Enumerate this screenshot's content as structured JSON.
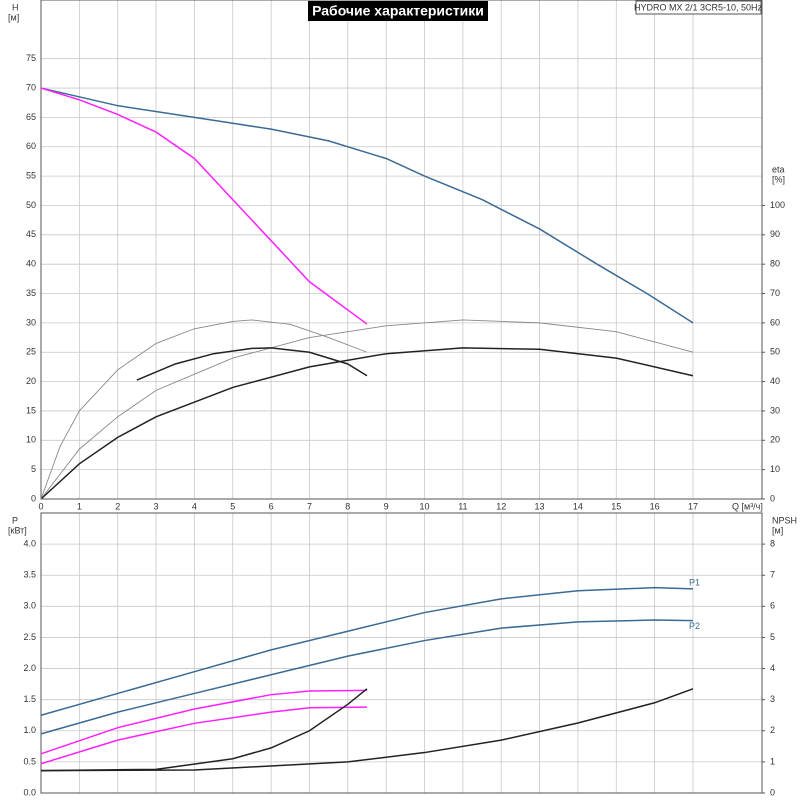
{
  "chart_data": [
    {
      "type": "line",
      "title": "Рабочие характеристики",
      "subtitle": "HYDRO MX 2/1 3CR5-10, 50Hz",
      "ylabel": "H",
      "yunit": "[м]",
      "y2label": "eta",
      "y2unit": "[%]",
      "xlabel": "Q [м³/ч]",
      "xlim": [
        0,
        18.8
      ],
      "xticks": [
        0,
        1,
        2,
        3,
        4,
        5,
        6,
        7,
        8,
        9,
        10,
        11,
        12,
        13,
        14,
        15,
        16,
        17
      ],
      "ylim": [
        0,
        85
      ],
      "yticks": [
        0,
        5,
        10,
        15,
        20,
        25,
        30,
        35,
        40,
        45,
        50,
        55,
        60,
        65,
        70,
        75
      ],
      "y2lim": [
        0,
        170
      ],
      "y2ticks": [
        0,
        10,
        20,
        30,
        40,
        50,
        60,
        70,
        80,
        90,
        100
      ],
      "grid": true,
      "series": [
        {
          "color": "#3b6a94",
          "x": [
            0,
            2,
            4,
            5,
            6,
            7.5,
            9,
            10,
            11.5,
            13,
            14.5,
            15.8,
            17
          ],
          "values": [
            70,
            67,
            65,
            64,
            63,
            61,
            58,
            55,
            51,
            46,
            40,
            35,
            30
          ]
        },
        {
          "color": "#ff20ff",
          "x": [
            0,
            1,
            2,
            3,
            4,
            5,
            6,
            7,
            8.5
          ],
          "values": [
            70,
            68,
            65.5,
            62.5,
            58,
            51,
            44,
            37,
            29.8
          ]
        },
        {
          "color": "#888888",
          "axis": "y2",
          "x": [
            0,
            1,
            2,
            3,
            5,
            7,
            9,
            11,
            13,
            15,
            17
          ],
          "values": [
            0,
            17,
            28,
            37,
            48,
            55,
            59,
            61,
            60,
            57,
            50
          ]
        },
        {
          "color": "#222222",
          "axis": "y2",
          "x": [
            0,
            1,
            2,
            3,
            5,
            7,
            9,
            11,
            13,
            15,
            17
          ],
          "values": [
            0,
            12,
            21,
            28,
            38,
            45,
            49.5,
            51.5,
            51,
            48,
            42
          ]
        },
        {
          "color": "#888888",
          "axis": "y2",
          "x": [
            0,
            0.5,
            1,
            2,
            3,
            4,
            5,
            5.5,
            6.5,
            7.5,
            8.5
          ],
          "values": [
            0,
            18,
            30,
            44,
            53,
            58,
            60.5,
            61,
            59.5,
            55,
            50
          ]
        },
        {
          "color": "#222222",
          "axis": "y2",
          "x": [
            2.5,
            3.5,
            4.5,
            5.5,
            6,
            7,
            8,
            8.5
          ],
          "values": [
            40.5,
            46,
            49.5,
            51.3,
            51.5,
            50,
            46,
            42
          ]
        }
      ]
    },
    {
      "type": "line",
      "ylabel": "P",
      "yunit": "[кВт]",
      "y2label": "NPSH",
      "y2unit": "[м]",
      "xlim": [
        0,
        18.8
      ],
      "xticks": [
        0,
        1,
        2,
        3,
        4,
        5,
        6,
        7,
        8,
        9,
        10,
        11,
        12,
        13,
        14,
        15,
        16,
        17
      ],
      "ylim": [
        0,
        4.5
      ],
      "yticks": [
        {
          "value": 0,
          "label": "0.0"
        },
        0.5,
        {
          "value": 1,
          "label": "1.0"
        },
        1.5,
        {
          "value": 2,
          "label": "2.0"
        },
        2.5,
        {
          "value": 3,
          "label": "3.0"
        },
        3.5,
        {
          "value": 4,
          "label": "4.0"
        }
      ],
      "y2lim": [
        0,
        9
      ],
      "y2ticks": [
        0,
        1,
        2,
        3,
        4,
        5,
        6,
        7,
        8
      ],
      "grid": true,
      "series": [
        {
          "name": "P1",
          "color": "#3b6a94",
          "x": [
            0,
            2,
            4,
            6,
            8,
            10,
            12,
            14,
            16,
            17
          ],
          "values": [
            1.25,
            1.6,
            1.95,
            2.3,
            2.6,
            2.9,
            3.12,
            3.25,
            3.3,
            3.28
          ]
        },
        {
          "name": "P2",
          "color": "#3b6a94",
          "x": [
            0,
            2,
            4,
            6,
            8,
            10,
            12,
            14,
            16,
            17
          ],
          "values": [
            0.95,
            1.3,
            1.6,
            1.9,
            2.2,
            2.45,
            2.65,
            2.75,
            2.78,
            2.77
          ]
        },
        {
          "color": "#ff20ff",
          "x": [
            0,
            2,
            4,
            6,
            7,
            8.5
          ],
          "values": [
            0.63,
            1.05,
            1.35,
            1.58,
            1.64,
            1.65
          ]
        },
        {
          "color": "#ff20ff",
          "x": [
            0,
            2,
            4,
            6,
            7,
            8.5
          ],
          "values": [
            0.47,
            0.85,
            1.12,
            1.3,
            1.37,
            1.38
          ]
        },
        {
          "color": "#222222",
          "axis": "y2",
          "x": [
            0,
            4,
            8,
            10,
            12,
            14,
            16,
            17
          ],
          "values": [
            0.72,
            0.74,
            1.0,
            1.3,
            1.7,
            2.25,
            2.9,
            3.35
          ]
        },
        {
          "color": "#222222",
          "axis": "y2",
          "x": [
            0,
            3,
            5,
            6,
            7,
            8,
            8.5
          ],
          "values": [
            0.72,
            0.76,
            1.1,
            1.45,
            2.0,
            2.85,
            3.35
          ]
        }
      ]
    }
  ]
}
